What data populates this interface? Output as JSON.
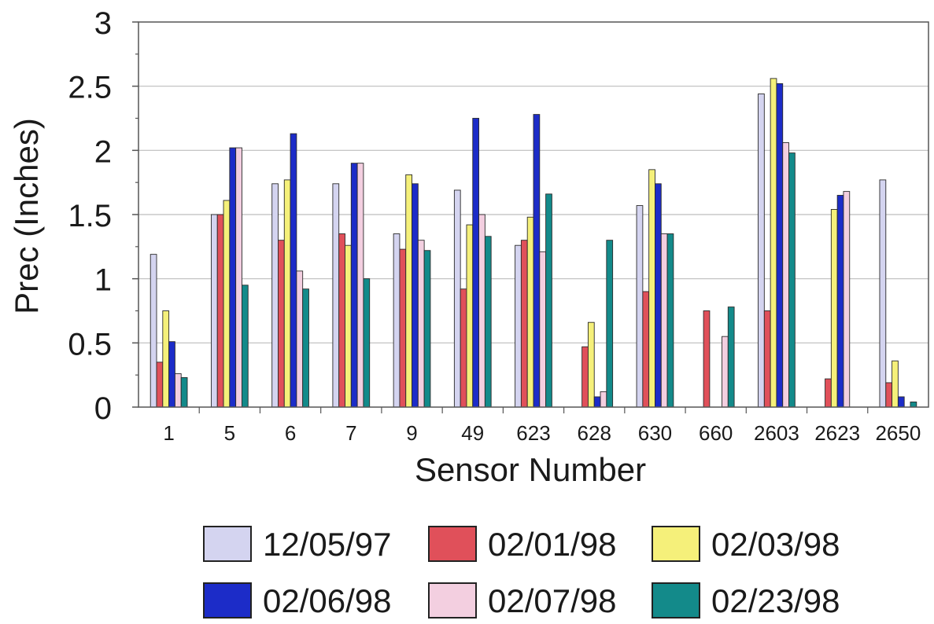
{
  "chart_data": {
    "type": "bar",
    "title": "",
    "xlabel": "Sensor Number",
    "ylabel": "Prec (Inches)",
    "ylim": [
      0,
      3
    ],
    "yticks": [
      "0",
      "0.5",
      "1",
      "1.5",
      "2",
      "2.5",
      "3"
    ],
    "grid": true,
    "legend_position": "bottom",
    "categories": [
      "1",
      "5",
      "6",
      "7",
      "9",
      "49",
      "623",
      "628",
      "630",
      "660",
      "2603",
      "2623",
      "2650"
    ],
    "series": [
      {
        "name": "12/05/97",
        "color": "#d4d4f0",
        "values": [
          1.19,
          1.5,
          1.74,
          1.74,
          1.35,
          1.69,
          1.26,
          null,
          1.57,
          null,
          2.44,
          null,
          1.77
        ]
      },
      {
        "name": "02/01/98",
        "color": "#e0505a",
        "values": [
          0.35,
          1.5,
          1.3,
          1.35,
          1.23,
          0.92,
          1.3,
          0.47,
          0.9,
          0.75,
          0.75,
          0.22,
          0.19
        ]
      },
      {
        "name": "02/03/98",
        "color": "#f5f07a",
        "values": [
          0.75,
          1.61,
          1.77,
          1.26,
          1.81,
          1.42,
          1.48,
          0.66,
          1.85,
          null,
          2.56,
          1.54,
          0.36
        ]
      },
      {
        "name": "02/06/98",
        "color": "#1c2cc8",
        "values": [
          0.51,
          2.02,
          2.13,
          1.9,
          1.74,
          2.25,
          2.28,
          0.08,
          1.74,
          null,
          2.52,
          1.65,
          0.08
        ]
      },
      {
        "name": "02/07/98",
        "color": "#f3cfe0",
        "values": [
          0.26,
          2.02,
          1.06,
          1.9,
          1.3,
          1.5,
          1.21,
          0.12,
          1.35,
          0.55,
          2.06,
          1.68,
          null
        ]
      },
      {
        "name": "02/23/98",
        "color": "#138a8a",
        "values": [
          0.23,
          0.95,
          0.92,
          1.0,
          1.22,
          1.33,
          1.66,
          1.3,
          1.35,
          0.78,
          1.98,
          null,
          0.04
        ]
      }
    ]
  }
}
